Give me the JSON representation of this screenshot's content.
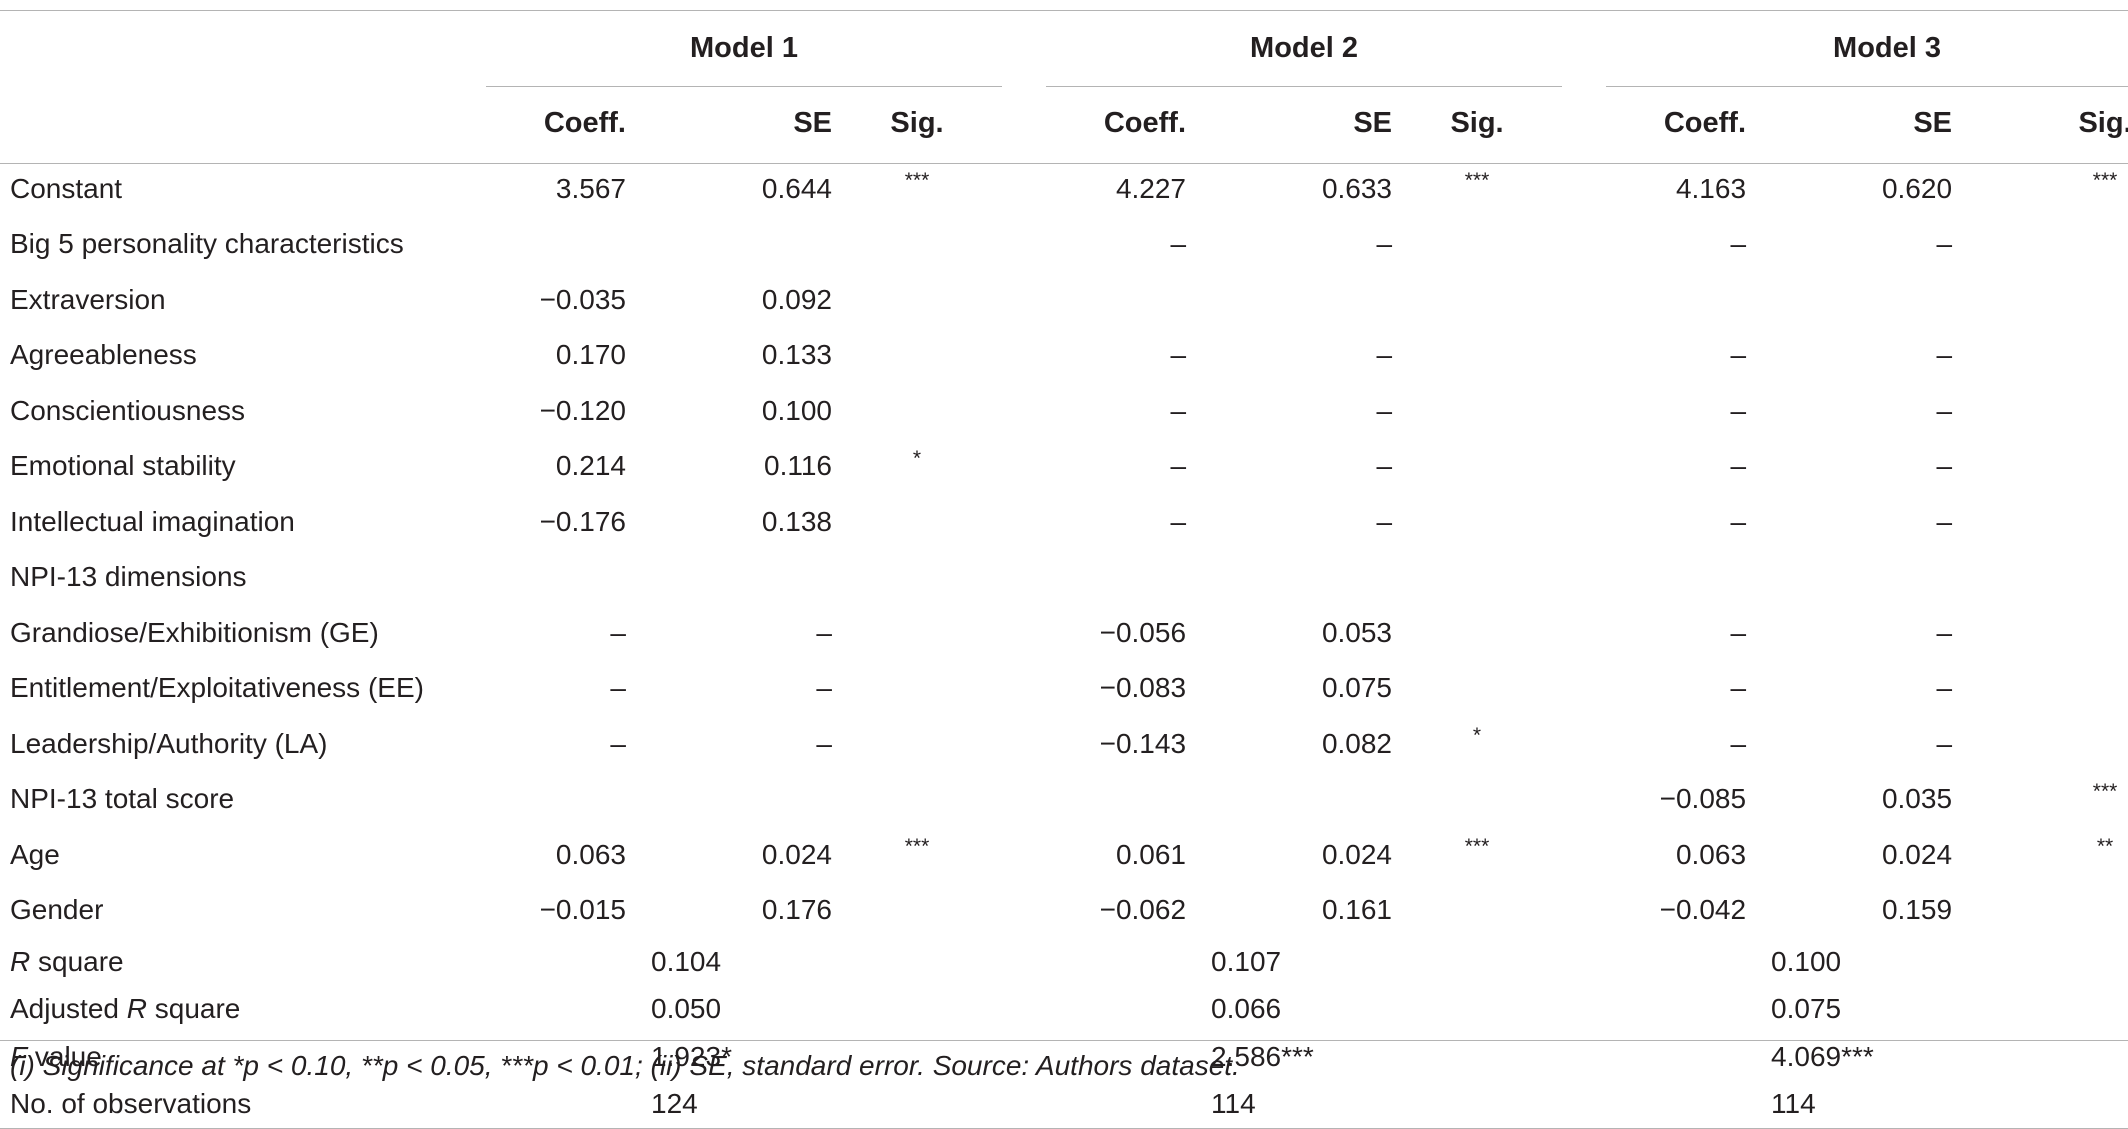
{
  "header": {
    "models": [
      "Model 1",
      "Model 2",
      "Model 3"
    ],
    "subcols": [
      "Coeff.",
      "SE",
      "Sig."
    ]
  },
  "rows": [
    {
      "label": "Constant",
      "m1": [
        "3.567",
        "0.644",
        "***"
      ],
      "m2": [
        "4.227",
        "0.633",
        "***"
      ],
      "m3": [
        "4.163",
        "0.620",
        "***"
      ]
    },
    {
      "label": "Big 5 personality characteristics",
      "m1": [
        "",
        "",
        ""
      ],
      "m2": [
        "–",
        "–",
        ""
      ],
      "m3": [
        "–",
        "–",
        ""
      ]
    },
    {
      "label": "Extraversion",
      "m1": [
        "−0.035",
        "0.092",
        ""
      ],
      "m2": [
        "",
        "",
        ""
      ],
      "m3": [
        "",
        "",
        ""
      ]
    },
    {
      "label": "Agreeableness",
      "m1": [
        "0.170",
        "0.133",
        ""
      ],
      "m2": [
        "–",
        "–",
        ""
      ],
      "m3": [
        "–",
        "–",
        ""
      ]
    },
    {
      "label": "Conscientiousness",
      "m1": [
        "−0.120",
        "0.100",
        ""
      ],
      "m2": [
        "–",
        "–",
        ""
      ],
      "m3": [
        "–",
        "–",
        ""
      ]
    },
    {
      "label": "Emotional stability",
      "m1": [
        "0.214",
        "0.116",
        "*"
      ],
      "m2": [
        "–",
        "–",
        ""
      ],
      "m3": [
        "–",
        "–",
        ""
      ]
    },
    {
      "label": "Intellectual imagination",
      "m1": [
        "−0.176",
        "0.138",
        ""
      ],
      "m2": [
        "–",
        "–",
        ""
      ],
      "m3": [
        "–",
        "–",
        ""
      ]
    },
    {
      "label": "NPI-13 dimensions",
      "m1": [
        "",
        "",
        ""
      ],
      "m2": [
        "",
        "",
        ""
      ],
      "m3": [
        "",
        "",
        ""
      ]
    },
    {
      "label": "Grandiose/Exhibitionism (GE)",
      "m1": [
        "–",
        "–",
        ""
      ],
      "m2": [
        "−0.056",
        "0.053",
        ""
      ],
      "m3": [
        "–",
        "–",
        ""
      ]
    },
    {
      "label": "Entitlement/Exploitativeness (EE)",
      "m1": [
        "–",
        "–",
        ""
      ],
      "m2": [
        "−0.083",
        "0.075",
        ""
      ],
      "m3": [
        "–",
        "–",
        ""
      ]
    },
    {
      "label": "Leadership/Authority (LA)",
      "m1": [
        "–",
        "–",
        ""
      ],
      "m2": [
        "−0.143",
        "0.082",
        "*"
      ],
      "m3": [
        "–",
        "–",
        ""
      ]
    },
    {
      "label": "NPI-13 total score",
      "m1": [
        "",
        "",
        ""
      ],
      "m2": [
        "",
        "",
        ""
      ],
      "m3": [
        "−0.085",
        "0.035",
        "***"
      ]
    },
    {
      "label": "Age",
      "m1": [
        "0.063",
        "0.024",
        "***"
      ],
      "m2": [
        "0.061",
        "0.024",
        "***"
      ],
      "m3": [
        "0.063",
        "0.024",
        "**"
      ]
    },
    {
      "label": "Gender",
      "m1": [
        "−0.015",
        "0.176",
        ""
      ],
      "m2": [
        "−0.062",
        "0.161",
        ""
      ],
      "m3": [
        "−0.042",
        "0.159",
        ""
      ]
    }
  ],
  "stats": [
    {
      "label_italic": "R",
      "label_rest": " square",
      "label_pre": "",
      "values": [
        "0.104",
        "0.107",
        "0.100"
      ]
    },
    {
      "label_pre": "Adjusted ",
      "label_italic": "R",
      "label_rest": " square",
      "values": [
        "0.050",
        "0.066",
        "0.075"
      ]
    },
    {
      "label_italic": "F",
      "label_rest": " value",
      "label_pre": "",
      "values": [
        "1.923*",
        "2.586***",
        "4.069***"
      ]
    },
    {
      "label_pre": "No. of observations",
      "label_italic": "",
      "label_rest": "",
      "values": [
        "124",
        "114",
        "114"
      ]
    }
  ],
  "footnote": "(i) Significance at *p < 0.10, **p < 0.05, ***p < 0.01; (ii) SE, standard error. Source: Authors dataset."
}
